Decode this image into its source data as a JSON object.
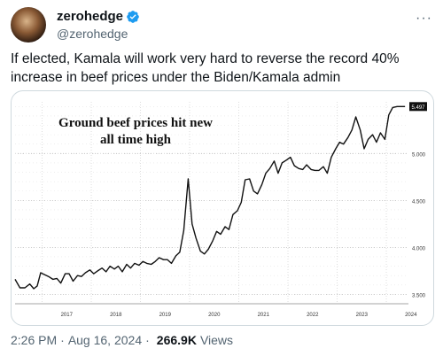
{
  "tweet": {
    "display_name": "zerohedge",
    "handle": "@zerohedge",
    "more_icon": "more-horizontal-icon",
    "verified_color": "#1d9bf0",
    "text": "If elected, Kamala will work very hard to reverse the record 40% increase in beef prices under the Biden/Kamala admin",
    "time": "2:26 PM",
    "date": "Aug 16, 2024",
    "views_count": "266.9K",
    "views_label": "Views",
    "separator": "·"
  },
  "chart_data": {
    "type": "line",
    "title": "Ground beef prices hit new all time high",
    "title_lines": [
      "Ground beef prices hit new",
      "all time high"
    ],
    "xlabel": "",
    "ylabel": "",
    "x_ticks": [
      "2017",
      "2018",
      "2019",
      "2020",
      "2021",
      "2022",
      "2023",
      "2024"
    ],
    "y_ticks": [
      "3.500",
      "4.000",
      "4.500",
      "5.000"
    ],
    "last_value_label": "5.497",
    "ylim": [
      3.4,
      5.55
    ],
    "xlim": [
      2016.45,
      2024.45
    ],
    "grid": true,
    "line_color": "#111111",
    "x": [
      2016.45,
      2016.55,
      2016.65,
      2016.75,
      2016.83,
      2016.9,
      2016.97,
      2017.05,
      2017.13,
      2017.22,
      2017.3,
      2017.38,
      2017.47,
      2017.55,
      2017.63,
      2017.72,
      2017.8,
      2017.88,
      2017.97,
      2018.05,
      2018.13,
      2018.22,
      2018.3,
      2018.38,
      2018.47,
      2018.55,
      2018.63,
      2018.72,
      2018.8,
      2018.88,
      2018.97,
      2019.05,
      2019.13,
      2019.22,
      2019.3,
      2019.38,
      2019.47,
      2019.55,
      2019.63,
      2019.72,
      2019.8,
      2019.88,
      2019.97,
      2020.05,
      2020.13,
      2020.22,
      2020.3,
      2020.38,
      2020.47,
      2020.55,
      2020.63,
      2020.72,
      2020.8,
      2020.88,
      2020.97,
      2021.05,
      2021.13,
      2021.22,
      2021.3,
      2021.38,
      2021.47,
      2021.55,
      2021.63,
      2021.72,
      2021.8,
      2021.88,
      2021.97,
      2022.05,
      2022.13,
      2022.22,
      2022.3,
      2022.38,
      2022.47,
      2022.55,
      2022.63,
      2022.72,
      2022.8,
      2022.88,
      2022.97,
      2023.05,
      2023.13,
      2023.22,
      2023.3,
      2023.38,
      2023.47,
      2023.55,
      2023.63,
      2023.72,
      2023.8,
      2023.88,
      2023.97,
      2024.05,
      2024.13,
      2024.22,
      2024.3,
      2024.38
    ],
    "values": [
      3.66,
      3.57,
      3.57,
      3.61,
      3.56,
      3.59,
      3.73,
      3.71,
      3.69,
      3.66,
      3.67,
      3.62,
      3.72,
      3.72,
      3.64,
      3.7,
      3.69,
      3.73,
      3.76,
      3.72,
      3.75,
      3.78,
      3.74,
      3.8,
      3.77,
      3.8,
      3.74,
      3.82,
      3.78,
      3.83,
      3.81,
      3.85,
      3.83,
      3.82,
      3.85,
      3.89,
      3.87,
      3.87,
      3.83,
      3.91,
      3.95,
      4.18,
      4.73,
      4.25,
      4.1,
      3.96,
      3.93,
      3.98,
      4.07,
      4.17,
      4.14,
      4.22,
      4.19,
      4.35,
      4.39,
      4.48,
      4.72,
      4.73,
      4.6,
      4.57,
      4.67,
      4.79,
      4.84,
      4.92,
      4.79,
      4.9,
      4.93,
      4.96,
      4.87,
      4.84,
      4.83,
      4.88,
      4.83,
      4.82,
      4.82,
      4.86,
      4.79,
      4.96,
      5.05,
      5.12,
      5.1,
      5.17,
      5.25,
      5.39,
      5.25,
      5.05,
      5.15,
      5.2,
      5.12,
      5.22,
      5.15,
      5.41,
      5.49,
      5.5,
      5.5,
      5.5
    ]
  }
}
